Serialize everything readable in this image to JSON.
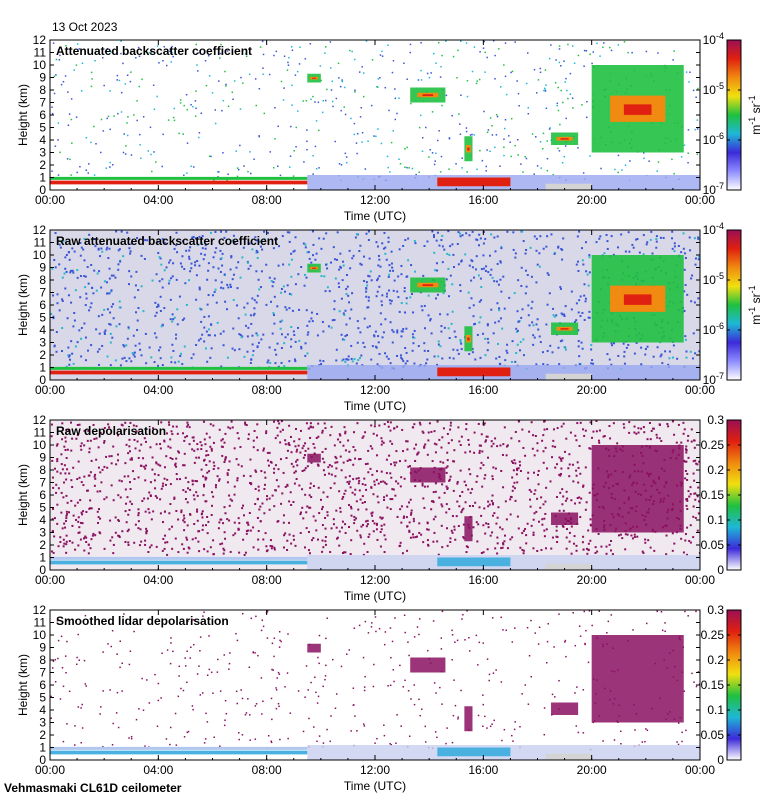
{
  "date_label": "13 Oct 2023",
  "footer_label": "Vehmasmaki CL61D ceilometer",
  "chart_data": [
    {
      "type": "heatmap",
      "title": "Attenuated backscatter coefficient",
      "xlabel": "Time (UTC)",
      "ylabel": "Height (km)",
      "xticks": [
        "00:00",
        "04:00",
        "08:00",
        "12:00",
        "16:00",
        "20:00",
        "00:00"
      ],
      "yticks": [
        "0",
        "1",
        "2",
        "3",
        "4",
        "5",
        "6",
        "7",
        "8",
        "9",
        "10",
        "11",
        "12"
      ],
      "ylim": [
        0,
        12
      ],
      "colorbar": {
        "scale": "log",
        "ticks": [
          "10",
          "10",
          "10",
          "10"
        ],
        "exponents": [
          "-7",
          "-6",
          "-5",
          "-4"
        ],
        "unit_m": "m",
        "unit_m_exp": "-1",
        "unit_sr": "sr",
        "unit_sr_exp": "-1"
      }
    },
    {
      "type": "heatmap",
      "title": "Raw attenuated backscatter coefficient",
      "xlabel": "Time (UTC)",
      "ylabel": "Height (km)",
      "xticks": [
        "00:00",
        "04:00",
        "08:00",
        "12:00",
        "16:00",
        "20:00",
        "00:00"
      ],
      "yticks": [
        "0",
        "1",
        "2",
        "3",
        "4",
        "5",
        "6",
        "7",
        "8",
        "9",
        "10",
        "11",
        "12"
      ],
      "ylim": [
        0,
        12
      ],
      "colorbar": {
        "scale": "log",
        "ticks": [
          "10",
          "10",
          "10",
          "10"
        ],
        "exponents": [
          "-7",
          "-6",
          "-5",
          "-4"
        ],
        "unit_m": "m",
        "unit_m_exp": "-1",
        "unit_sr": "sr",
        "unit_sr_exp": "-1"
      }
    },
    {
      "type": "heatmap",
      "title": "Raw depolarisation",
      "xlabel": "Time (UTC)",
      "ylabel": "Height (km)",
      "xticks": [
        "00:00",
        "04:00",
        "08:00",
        "12:00",
        "16:00",
        "20:00",
        "00:00"
      ],
      "yticks": [
        "0",
        "1",
        "2",
        "3",
        "4",
        "5",
        "6",
        "7",
        "8",
        "9",
        "10",
        "11",
        "12"
      ],
      "ylim": [
        0,
        12
      ],
      "colorbar": {
        "scale": "linear",
        "ticks": [
          "0",
          "0.05",
          "0.1",
          "0.15",
          "0.2",
          "0.25",
          "0.3"
        ],
        "range": [
          0,
          0.3
        ]
      }
    },
    {
      "type": "heatmap",
      "title": "Smoothed lidar depolarisation",
      "xlabel": "Time (UTC)",
      "ylabel": "Height (km)",
      "xticks": [
        "00:00",
        "04:00",
        "08:00",
        "12:00",
        "16:00",
        "20:00",
        "00:00"
      ],
      "yticks": [
        "0",
        "1",
        "2",
        "3",
        "4",
        "5",
        "6",
        "7",
        "8",
        "9",
        "10",
        "11",
        "12"
      ],
      "ylim": [
        0,
        12
      ],
      "colorbar": {
        "scale": "linear",
        "ticks": [
          "0",
          "0.05",
          "0.1",
          "0.15",
          "0.2",
          "0.25",
          "0.3"
        ],
        "range": [
          0,
          0.3
        ]
      }
    }
  ],
  "features": {
    "boundary_layer_km": 0.6,
    "cloud_layers": [
      {
        "t_start_h": 9.5,
        "t_end_h": 10.0,
        "h_bottom_km": 8.6,
        "h_top_km": 9.3
      },
      {
        "t_start_h": 13.3,
        "t_end_h": 14.6,
        "h_bottom_km": 7.0,
        "h_top_km": 8.2
      },
      {
        "t_start_h": 15.3,
        "t_end_h": 15.6,
        "h_bottom_km": 2.3,
        "h_top_km": 4.3
      },
      {
        "t_start_h": 18.5,
        "t_end_h": 19.5,
        "h_bottom_km": 3.6,
        "h_top_km": 4.6
      },
      {
        "t_start_h": 20.0,
        "t_end_h": 23.4,
        "h_bottom_km": 3.0,
        "h_top_km": 10.0
      }
    ],
    "low_cloud": {
      "t_start_h": 14.3,
      "t_end_h": 17.0,
      "h_bottom_km": 0.3,
      "h_top_km": 1.0
    }
  },
  "colors": {
    "background": "#ffffff",
    "raw_noise_backscatter": "#3b55d8",
    "depol_noise": "#8a1060",
    "missing": "#d4d4d4"
  }
}
